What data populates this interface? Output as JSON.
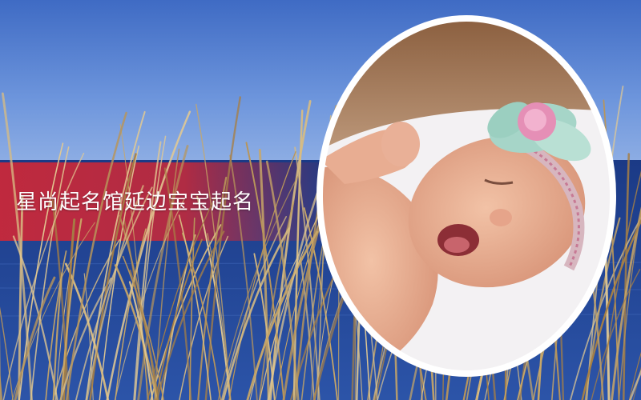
{
  "banner": {
    "title": "星尚起名馆延边宝宝起名",
    "color": "#c8283a"
  },
  "photo": {
    "subject": "yawning-newborn-baby",
    "accessory": "flower-headband"
  },
  "background": {
    "sky_color": "#5a86d6",
    "sea_color": "#1d3f8c",
    "grass_color": "#b8955a"
  }
}
